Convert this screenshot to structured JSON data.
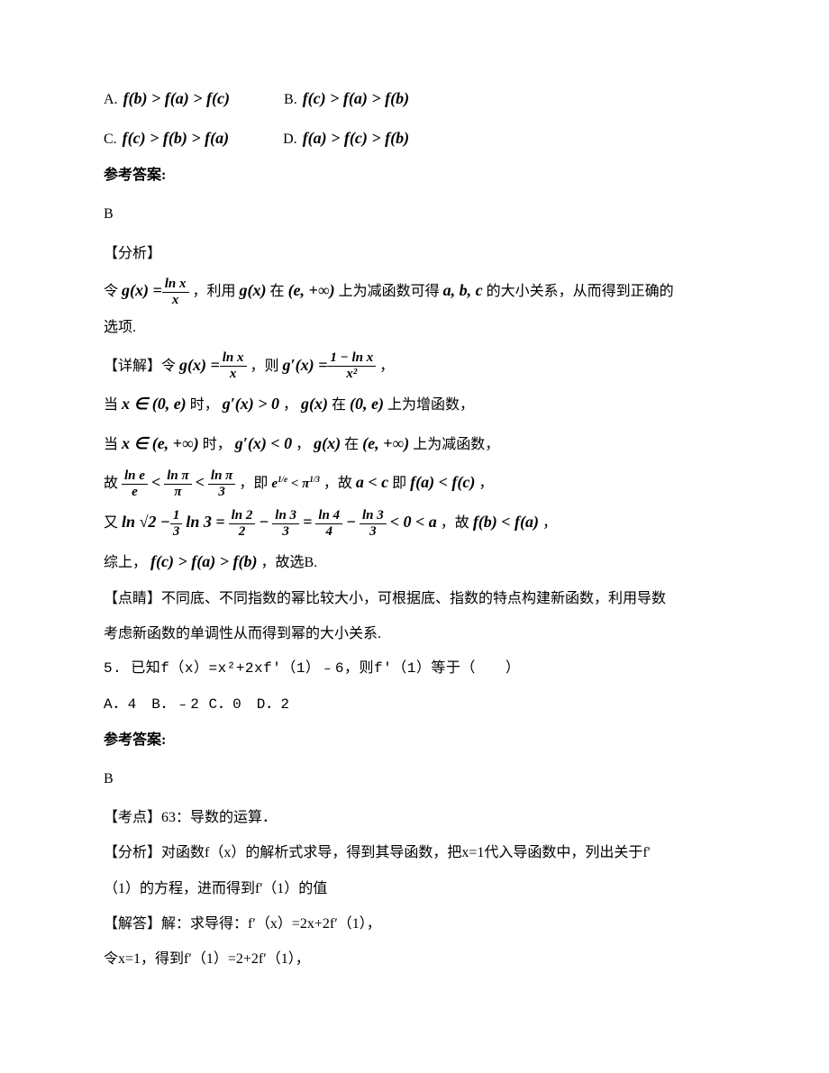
{
  "choices": {
    "A": {
      "label": "A.",
      "expr": "f(b) > f(a) > f(c)"
    },
    "B": {
      "label": "B.",
      "expr": "f(c) > f(a) > f(b)"
    },
    "C": {
      "label": "C.",
      "expr": "f(c) > f(b) > f(a)"
    },
    "D": {
      "label": "D.",
      "expr": "f(a) > f(c) > f(b)"
    }
  },
  "answer_heading": "参考答案:",
  "answer_letter_q4": "B",
  "analysis_heading": "【分析】",
  "analysis_line1_prefix": "令",
  "analysis_line1_gx_eq": "g(x) = ",
  "analysis_line1_frac_num": "ln x",
  "analysis_line1_frac_den": "x",
  "analysis_line1_mid1": "，利用",
  "analysis_line1_gx": "g(x)",
  "analysis_line1_mid2": "在",
  "analysis_line1_interval": "(e, +∞)",
  "analysis_line1_mid3": "上为减函数可得",
  "analysis_line1_abc": "a, b, c",
  "analysis_line1_end": "的大小关系，从而得到正确的",
  "analysis_line2": "选项.",
  "detail_heading": "【详解】令",
  "detail_gx_eq": "g(x) = ",
  "detail_frac1_num": "ln x",
  "detail_frac1_den": "x",
  "detail_then": "，则",
  "detail_gpx_eq": "g′(x) = ",
  "detail_frac2_num": "1 − ln x",
  "detail_frac2_den": "x²",
  "detail_comma": "，",
  "when_label": "当",
  "interval_0e": "x ∈ (0, e)",
  "when_mid": "时，",
  "gprime_gt0": "g′(x) > 0",
  "gx_text": "g(x)",
  "in_text": "在",
  "interval_0e2": "(0, e)",
  "increase_text": "上为增函数，",
  "interval_einf": "x ∈ (e, +∞)",
  "gprime_lt0": "g′(x) < 0",
  "interval_einf2": "(e, +∞)",
  "decrease_text": "上为减函数，",
  "therefore_label": "故",
  "frac_lne_num": "ln e",
  "frac_lne_den": "e",
  "lt1": "<",
  "frac_lnpi_num": "ln π",
  "frac_lnpi_den": "π",
  "lt2": "<",
  "frac_lnpi3_num": "ln π",
  "frac_lnpi3_den": "3",
  "ie_text": "，即",
  "e_exp": "e^(1/e) < π^(1/3)",
  "so_text": "，故",
  "a_lt_c": "a < c",
  "ie2_text": "即",
  "fa_lt_fc": "f(a) < f(c)",
  "end_comma": "，",
  "also_label": "又",
  "ln_sqrt2": "ln √2 − ",
  "frac_13_num": "1",
  "frac_13_den": "3",
  "ln3_text": "ln 3 = ",
  "frac_ln22_num": "ln 2",
  "frac_ln22_den": "2",
  "minus1": " − ",
  "frac_ln33_num": "ln 3",
  "frac_ln33_den": "3",
  "eq_text": " = ",
  "frac_ln44_num": "ln 4",
  "frac_ln44_den": "4",
  "minus2": " − ",
  "frac_ln33b_num": "ln 3",
  "frac_ln33b_den": "3",
  "lt_0_a": " < 0 < a",
  "so_fb_fa": "，故",
  "fb_lt_fa": "f(b) < f(a)",
  "end_comma2": "，",
  "summary_label": "综上，",
  "summary_expr": "f(c) > f(a) > f(b)",
  "summary_end": "，故选B.",
  "comment_heading": "【点睛】不同底、不同指数的幂比较大小，可根据底、指数的特点构建新函数，利用导数",
  "comment_line2": "考虑新函数的单调性从而得到幂的大小关系.",
  "q5_text": "5. 已知f（x）=x²+2xf′（1）﹣6，则f′（1）等于（　　）",
  "q5_choices": "A．4　B．﹣2 C．0　D．2",
  "answer_heading2": "参考答案:",
  "answer_letter_q5": "B",
  "q5_topic": "【考点】63：导数的运算．",
  "q5_analysis": "【分析】对函数f（x）的解析式求导，得到其导函数，把x=1代入导函数中，列出关于f'",
  "q5_analysis2": "（1）的方程，进而得到f'（1）的值",
  "q5_solve1": "【解答】解：求导得：f′（x）=2x+2f′（1），",
  "q5_solve2": "令x=1，得到f′（1）=2+2f′（1），",
  "colors": {
    "text": "#000000",
    "background": "#ffffff"
  }
}
